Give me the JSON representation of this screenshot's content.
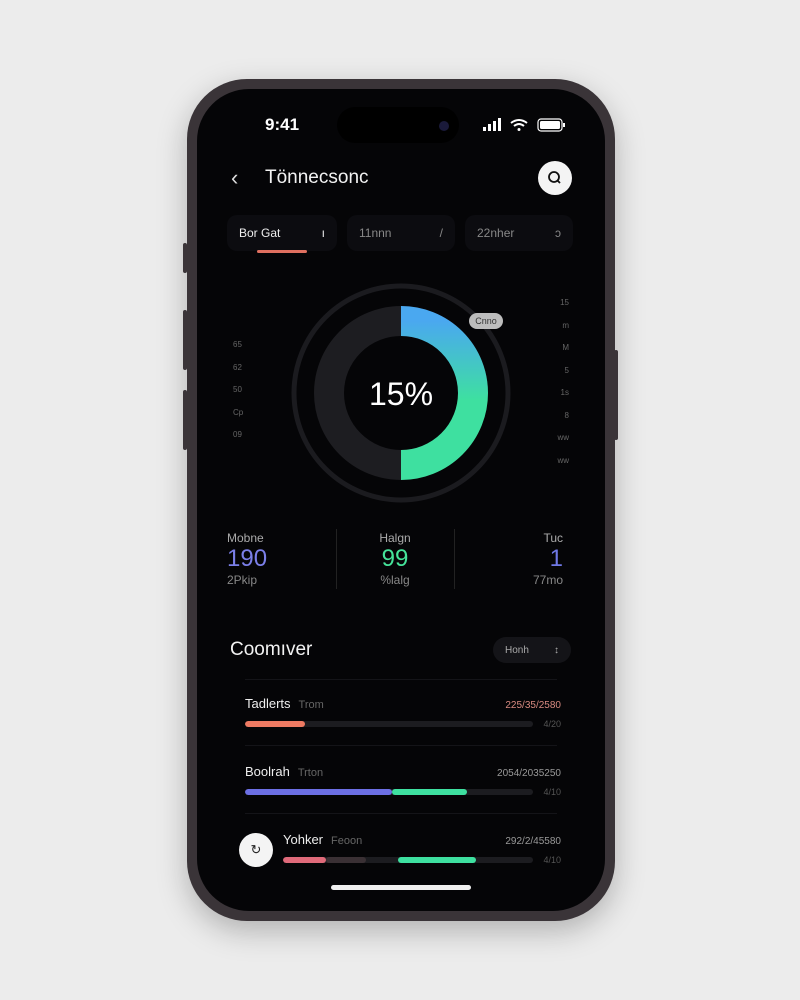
{
  "status_bar": {
    "time": "9:41"
  },
  "header": {
    "title": "Tönnecsonc",
    "back_icon": "chevron-left-icon",
    "search_icon": "search-icon"
  },
  "tabs": [
    {
      "label": "Bor Gat",
      "suffix": "ı",
      "active": true
    },
    {
      "label": "11nnn",
      "suffix": "/",
      "active": false
    },
    {
      "label": "22nher",
      "suffix": "ɔ",
      "active": false
    }
  ],
  "gauge": {
    "value_label": "15%",
    "badge": "Cnno",
    "fill_fraction": 0.5,
    "gradient": [
      "#4aa8f0",
      "#3ee0a0"
    ],
    "left_ticks": [
      "65",
      "62",
      "50",
      "Cp",
      "09"
    ],
    "right_ticks": [
      "15",
      "m",
      "M",
      "5",
      "1s",
      "8",
      "ww",
      "ww"
    ]
  },
  "stats": [
    {
      "label": "Mobne",
      "value": "190",
      "sub": "2Pkip",
      "color": "#7b7fe8"
    },
    {
      "label": "Halgn",
      "value": "99",
      "sub": "%lalg",
      "color": "#45e49a"
    },
    {
      "label": "Tuc",
      "value": "1",
      "sub": "77mo",
      "color": "#6f78e6"
    }
  ],
  "section": {
    "title": "Coomıver",
    "filter_label": "Honh",
    "filter_icon": "chevron-updown-icon"
  },
  "rows": [
    {
      "name": "Tadlerts",
      "sub": "Trom",
      "value": "225/35/2580",
      "pct": "4/20",
      "value_color": "#d88a80",
      "segments": [
        {
          "from": 0,
          "to": 0.21,
          "color": "#ee7a62"
        }
      ]
    },
    {
      "name": "Boolrah",
      "sub": "Trton",
      "value": "2054/2035250",
      "pct": "4/10",
      "value_color": "#999999",
      "segments": [
        {
          "from": 0,
          "to": 0.51,
          "color": "#6c6fe4"
        },
        {
          "from": 0.51,
          "to": 0.77,
          "color": "#3ee0a0"
        }
      ]
    },
    {
      "name": "Yohker",
      "sub": "Feoon",
      "value": "292/2/45580",
      "pct": "4/10",
      "value_color": "#999999",
      "avatar_icon": "refresh-icon",
      "segments": [
        {
          "from": 0,
          "to": 0.17,
          "color": "#e06a7a"
        },
        {
          "from": 0.17,
          "to": 0.33,
          "color": "#3a3034"
        },
        {
          "from": 0.46,
          "to": 0.77,
          "color": "#3ee0a0"
        }
      ]
    }
  ]
}
